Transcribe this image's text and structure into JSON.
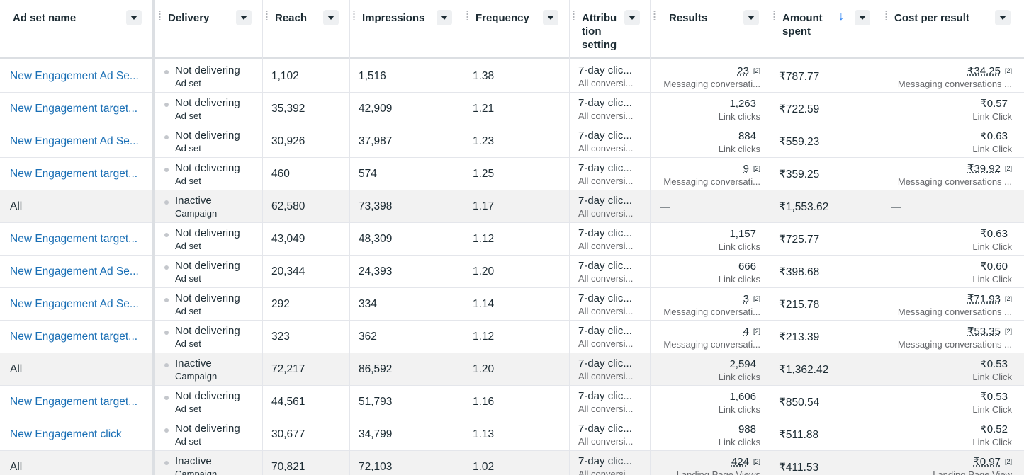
{
  "headers": {
    "ad_set_name": "Ad set name",
    "delivery": "Delivery",
    "reach": "Reach",
    "impressions": "Impressions",
    "frequency": "Frequency",
    "attribution_line1": "Attribu",
    "attribution_line2": "tion",
    "attribution_line3": "setting",
    "results": "Results",
    "amount_line1": "Amount",
    "amount_line2": "spent",
    "cost_per_result": "Cost per result",
    "sort_icon": "↓"
  },
  "colors": {
    "link": "#1a6fb5",
    "accent": "#1877f2",
    "summary_row_bg": "#f2f2f2"
  },
  "rows": [
    {
      "name": "New Engagement Ad Se...",
      "all": false,
      "status": "Not delivering",
      "level": "Ad set",
      "reach": "1,102",
      "impressions": "1,516",
      "frequency": "1.38",
      "attr": "7-day clic...",
      "attr_sub": "All conversi...",
      "result": "23",
      "result_badge": "[2]",
      "result_sub": "Messaging conversati...",
      "amount": "₹787.77",
      "cpr": "₹34.25",
      "cpr_badge": "[2]",
      "cpr_sub": "Messaging conversations ..."
    },
    {
      "name": "New Engagement target...",
      "all": false,
      "status": "Not delivering",
      "level": "Ad set",
      "reach": "35,392",
      "impressions": "42,909",
      "frequency": "1.21",
      "attr": "7-day clic...",
      "attr_sub": "All conversi...",
      "result": "1,263",
      "result_badge": "",
      "result_sub": "Link clicks",
      "amount": "₹722.59",
      "cpr": "₹0.57",
      "cpr_badge": "",
      "cpr_sub": "Link Click"
    },
    {
      "name": "New Engagement Ad Se...",
      "all": false,
      "status": "Not delivering",
      "level": "Ad set",
      "reach": "30,926",
      "impressions": "37,987",
      "frequency": "1.23",
      "attr": "7-day clic...",
      "attr_sub": "All conversi...",
      "result": "884",
      "result_badge": "",
      "result_sub": "Link clicks",
      "amount": "₹559.23",
      "cpr": "₹0.63",
      "cpr_badge": "",
      "cpr_sub": "Link Click"
    },
    {
      "name": "New Engagement target...",
      "all": false,
      "status": "Not delivering",
      "level": "Ad set",
      "reach": "460",
      "impressions": "574",
      "frequency": "1.25",
      "attr": "7-day clic...",
      "attr_sub": "All conversi...",
      "result": "9",
      "result_badge": "[2]",
      "result_sub": "Messaging conversati...",
      "amount": "₹359.25",
      "cpr": "₹39.92",
      "cpr_badge": "[2]",
      "cpr_sub": "Messaging conversations ..."
    },
    {
      "name": "All",
      "all": true,
      "status": "Inactive",
      "level": "Campaign",
      "reach": "62,580",
      "impressions": "73,398",
      "frequency": "1.17",
      "attr": "7-day clic...",
      "attr_sub": "All conversi...",
      "result": "—",
      "result_badge": "",
      "result_sub": "",
      "amount": "₹1,553.62",
      "cpr": "—",
      "cpr_badge": "",
      "cpr_sub": ""
    },
    {
      "name": "New Engagement target...",
      "all": false,
      "status": "Not delivering",
      "level": "Ad set",
      "reach": "43,049",
      "impressions": "48,309",
      "frequency": "1.12",
      "attr": "7-day clic...",
      "attr_sub": "All conversi...",
      "result": "1,157",
      "result_badge": "",
      "result_sub": "Link clicks",
      "amount": "₹725.77",
      "cpr": "₹0.63",
      "cpr_badge": "",
      "cpr_sub": "Link Click"
    },
    {
      "name": "New Engagement Ad Se...",
      "all": false,
      "status": "Not delivering",
      "level": "Ad set",
      "reach": "20,344",
      "impressions": "24,393",
      "frequency": "1.20",
      "attr": "7-day clic...",
      "attr_sub": "All conversi...",
      "result": "666",
      "result_badge": "",
      "result_sub": "Link clicks",
      "amount": "₹398.68",
      "cpr": "₹0.60",
      "cpr_badge": "",
      "cpr_sub": "Link Click"
    },
    {
      "name": "New Engagement Ad Se...",
      "all": false,
      "status": "Not delivering",
      "level": "Ad set",
      "reach": "292",
      "impressions": "334",
      "frequency": "1.14",
      "attr": "7-day clic...",
      "attr_sub": "All conversi...",
      "result": "3",
      "result_badge": "[2]",
      "result_sub": "Messaging conversati...",
      "amount": "₹215.78",
      "cpr": "₹71.93",
      "cpr_badge": "[2]",
      "cpr_sub": "Messaging conversations ..."
    },
    {
      "name": "New Engagement target...",
      "all": false,
      "status": "Not delivering",
      "level": "Ad set",
      "reach": "323",
      "impressions": "362",
      "frequency": "1.12",
      "attr": "7-day clic...",
      "attr_sub": "All conversi...",
      "result": "4",
      "result_badge": "[2]",
      "result_sub": "Messaging conversati...",
      "amount": "₹213.39",
      "cpr": "₹53.35",
      "cpr_badge": "[2]",
      "cpr_sub": "Messaging conversations ..."
    },
    {
      "name": "All",
      "all": true,
      "status": "Inactive",
      "level": "Campaign",
      "reach": "72,217",
      "impressions": "86,592",
      "frequency": "1.20",
      "attr": "7-day clic...",
      "attr_sub": "All conversi...",
      "result": "2,594",
      "result_badge": "",
      "result_sub": "Link clicks",
      "amount": "₹1,362.42",
      "cpr": "₹0.53",
      "cpr_badge": "",
      "cpr_sub": "Link Click"
    },
    {
      "name": "New Engagement target...",
      "all": false,
      "status": "Not delivering",
      "level": "Ad set",
      "reach": "44,561",
      "impressions": "51,793",
      "frequency": "1.16",
      "attr": "7-day clic...",
      "attr_sub": "All conversi...",
      "result": "1,606",
      "result_badge": "",
      "result_sub": "Link clicks",
      "amount": "₹850.54",
      "cpr": "₹0.53",
      "cpr_badge": "",
      "cpr_sub": "Link Click"
    },
    {
      "name": "New Engagement click",
      "all": false,
      "status": "Not delivering",
      "level": "Ad set",
      "reach": "30,677",
      "impressions": "34,799",
      "frequency": "1.13",
      "attr": "7-day clic...",
      "attr_sub": "All conversi...",
      "result": "988",
      "result_badge": "",
      "result_sub": "Link clicks",
      "amount": "₹511.88",
      "cpr": "₹0.52",
      "cpr_badge": "",
      "cpr_sub": "Link Click"
    },
    {
      "name": "All",
      "all": true,
      "status": "Inactive",
      "level": "Campaign",
      "reach": "70,821",
      "impressions": "72,103",
      "frequency": "1.02",
      "attr": "7-day clic...",
      "attr_sub": "All conversi...",
      "result": "424",
      "result_badge": "[2]",
      "result_sub": "Landing Page Views",
      "amount": "₹411.53",
      "cpr": "₹0.97",
      "cpr_badge": "[2]",
      "cpr_sub": "Landing Page View"
    }
  ]
}
